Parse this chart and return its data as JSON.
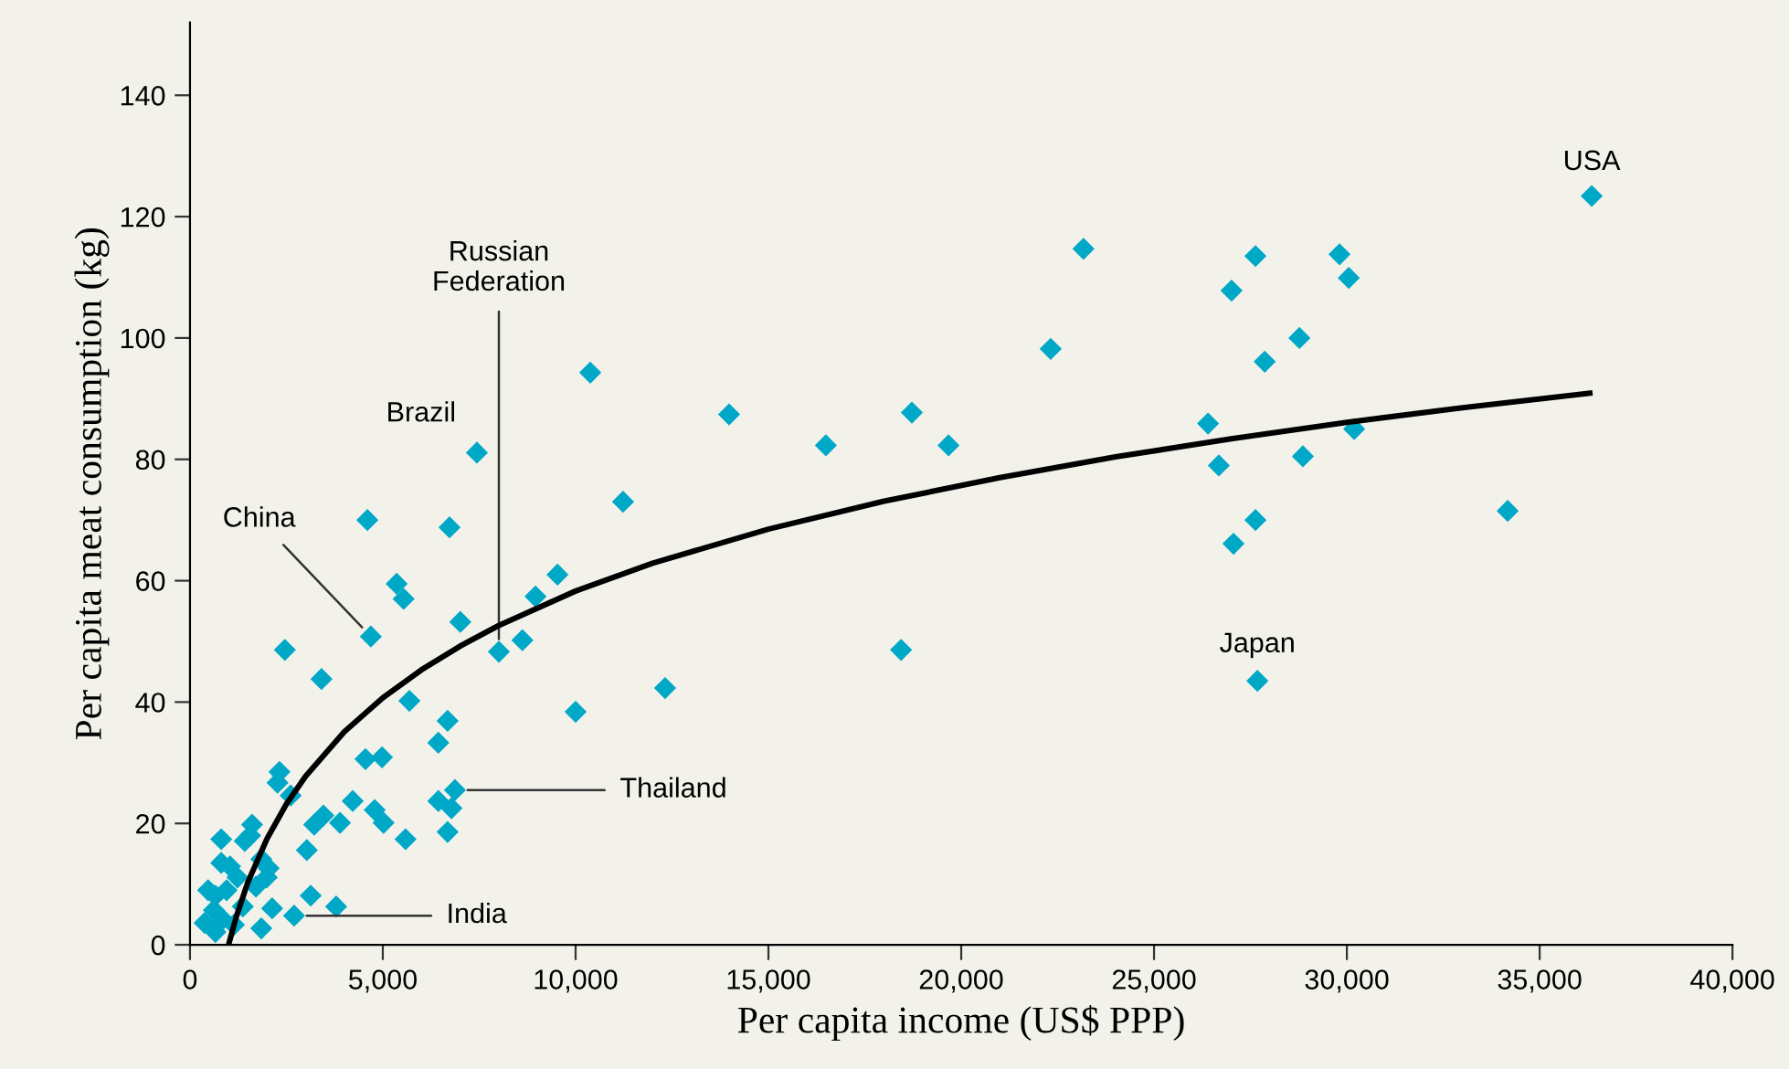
{
  "chart_data": {
    "type": "scatter",
    "xlabel": "Per capita income (US$ PPP)",
    "ylabel": "Per capita meat consumption (kg)",
    "xlim": [
      0,
      40000
    ],
    "ylim": [
      0,
      152
    ],
    "xticks": [
      0,
      {
        "value": 5000,
        "label": "5,000"
      },
      {
        "value": 10000,
        "label": "10,000"
      },
      {
        "value": 15000,
        "label": "15,000"
      },
      {
        "value": 20000,
        "label": "20,000"
      },
      {
        "value": 25000,
        "label": "25,000"
      },
      {
        "value": 30000,
        "label": "30,000"
      },
      {
        "value": 35000,
        "label": "35,000"
      },
      {
        "value": 40000,
        "label": "40,000"
      }
    ],
    "yticks": [
      0,
      20,
      40,
      60,
      80,
      100,
      120,
      140
    ],
    "grid": false,
    "legend": false,
    "series": [
      {
        "color": "#00a8c8",
        "marker": "diamond",
        "x": [
          36350,
          23170,
          27630,
          29810,
          27010,
          30050,
          22320,
          28770,
          27870,
          10380,
          13980,
          18720,
          19670,
          16490,
          26400,
          30190,
          26680,
          28860,
          7440,
          11230,
          34170,
          27630,
          27060,
          4600,
          6730,
          5360,
          5540,
          9530,
          8960,
          7010,
          4690,
          8620,
          8010,
          18440,
          2460,
          27680,
          12320,
          3410,
          5690,
          10000,
          6680,
          6440,
          6870,
          4980,
          4550,
          4220,
          6440,
          6780,
          6680,
          4790,
          5020,
          3890,
          5590,
          3460,
          3220,
          3030,
          2320,
          2270,
          2610,
          1610,
          1560,
          1420,
          1850,
          2040,
          1990,
          1710,
          810,
          810,
          1040,
          1230,
          470,
          660,
          950,
          620,
          850,
          1140,
          1850,
          2130,
          3130,
          3790,
          2700,
          660,
          380,
          1370
        ],
        "values": [
          123.4,
          114.7,
          113.5,
          113.8,
          107.8,
          109.9,
          98.2,
          100,
          96.1,
          94.3,
          87.4,
          87.7,
          82.3,
          82.3,
          85.9,
          85,
          79,
          80.5,
          81.1,
          73,
          71.5,
          70,
          66.1,
          70,
          68.8,
          59.5,
          57,
          61,
          57.4,
          53.2,
          50.8,
          50.2,
          48.3,
          48.6,
          48.6,
          43.5,
          42.3,
          43.8,
          40.2,
          38.4,
          36.9,
          33.3,
          25.5,
          30.9,
          30.6,
          23.7,
          23.7,
          22.5,
          18.6,
          22.2,
          20.1,
          20.1,
          17.4,
          21.3,
          19.8,
          15.6,
          28.5,
          26.7,
          24.6,
          19.8,
          18,
          17.1,
          14.1,
          12.6,
          11.1,
          9.6,
          17.4,
          13.5,
          12.9,
          11.1,
          9,
          8.1,
          9,
          5.7,
          4.2,
          3.3,
          2.7,
          6,
          8.1,
          6.3,
          4.8,
          2.1,
          3.6,
          6.3
        ]
      },
      {
        "type": "line",
        "color": "#000000",
        "line_style": "solid",
        "marker": "none",
        "x": [
          1000,
          1200,
          1500,
          2000,
          2500,
          3000,
          4000,
          5000,
          6000,
          7000,
          8000,
          10000,
          12000,
          15000,
          18000,
          21000,
          24000,
          27000,
          30000,
          33000,
          36300
        ],
        "values": [
          0,
          4.6,
          10.3,
          17.5,
          23.2,
          27.8,
          35.1,
          40.7,
          45.3,
          49.2,
          52.6,
          58.3,
          62.9,
          68.5,
          73.1,
          77.0,
          80.4,
          83.4,
          86.1,
          88.5,
          90.9
        ]
      }
    ],
    "annotations": [
      {
        "text": "USA",
        "x": 36350,
        "y": 123.4
      },
      {
        "text": "Russian\nFederation",
        "x": 8010,
        "y": 48.3
      },
      {
        "text": "Brazil",
        "x": 7440,
        "y": 81.1
      },
      {
        "text": "China",
        "x": 4690,
        "y": 50.8
      },
      {
        "text": "Japan",
        "x": 27680,
        "y": 43.5
      },
      {
        "text": "Thailand",
        "x": 6870,
        "y": 25.5
      },
      {
        "text": "India",
        "x": 2700,
        "y": 4.8
      }
    ]
  }
}
